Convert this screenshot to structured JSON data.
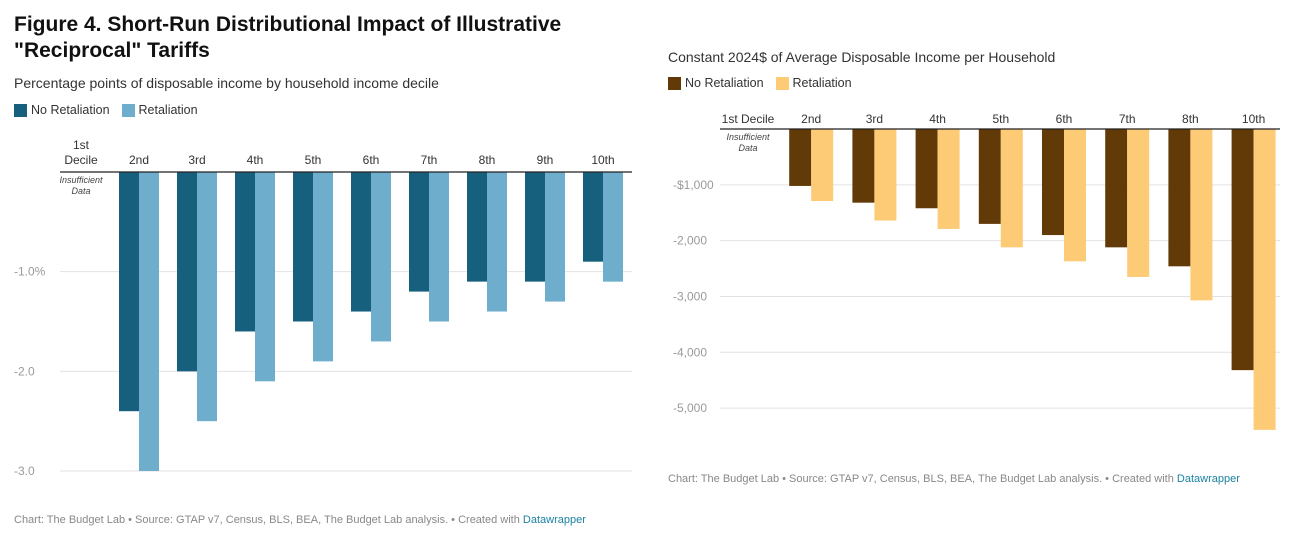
{
  "title": "Figure 4. Short-Run Distributional Impact of Illustrative \"Reciprocal\" Tariffs",
  "colors": {
    "left_no_retaliation": "#17607d",
    "left_retaliation": "#6eadcb",
    "right_no_retaliation": "#613a07",
    "right_retaliation": "#fdca76",
    "grid": "#e2e2e2",
    "axis_label": "#9a9a9a",
    "datawrapper_link": "#1d81a2"
  },
  "chart_data": [
    {
      "type": "bar",
      "subtitle": "Percentage points of disposable income by household income decile",
      "legend_position": "top-left",
      "grid": true,
      "categories": [
        "1st Decile",
        "2nd",
        "3rd",
        "4th",
        "5th",
        "6th",
        "7th",
        "8th",
        "9th",
        "10th"
      ],
      "note": "Insufficient Data",
      "series": [
        {
          "name": "No Retaliation",
          "values": [
            null,
            -2.4,
            -2.0,
            -1.6,
            -1.5,
            -1.4,
            -1.2,
            -1.1,
            -1.1,
            -0.9
          ]
        },
        {
          "name": "Retaliation",
          "values": [
            null,
            -3.0,
            -2.5,
            -2.1,
            -1.9,
            -1.7,
            -1.5,
            -1.4,
            -1.3,
            -1.1
          ]
        }
      ],
      "ylim": [
        -3.0,
        0
      ],
      "yticks": [
        -1.0,
        -2.0,
        -3.0
      ],
      "ytick_labels": [
        "-1.0%",
        "-2.0",
        "-3.0"
      ],
      "footer": {
        "text": "Chart: The Budget Lab • Source: GTAP v7, Census, BLS, BEA, The Budget Lab analysis. • Created with ",
        "link": "Datawrapper"
      }
    },
    {
      "type": "bar",
      "subtitle": "Constant 2024$ of Average Disposable Income per Household",
      "legend_position": "top-left",
      "grid": true,
      "categories": [
        "1st Decile",
        "2nd",
        "3rd",
        "4th",
        "5th",
        "6th",
        "7th",
        "8th",
        "10th"
      ],
      "note": "Insufficient Data",
      "series": [
        {
          "name": "No Retaliation",
          "values": [
            null,
            -1020,
            -1320,
            -1420,
            -1700,
            -1900,
            -2120,
            -2460,
            -4320
          ]
        },
        {
          "name": "Retaliation",
          "values": [
            null,
            -1290,
            -1640,
            -1790,
            -2120,
            -2370,
            -2650,
            -3070,
            -5390
          ]
        }
      ],
      "ylim": [
        -5500,
        0
      ],
      "yticks": [
        -1000,
        -2000,
        -3000,
        -4000,
        -5000
      ],
      "ytick_labels": [
        "-$1,000",
        "-2,000",
        "-3,000",
        "-4,000",
        "-5,000"
      ],
      "footer": {
        "text": "Chart: The Budget Lab • Source: GTAP v7, Census, BLS, BEA, The Budget Lab analysis. • Created with ",
        "link": "Datawrapper"
      }
    }
  ]
}
